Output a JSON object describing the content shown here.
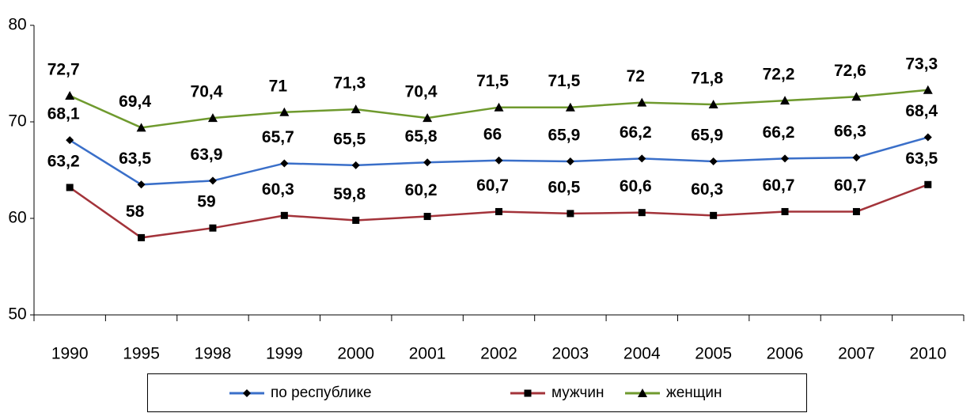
{
  "chart_data": {
    "type": "line",
    "categories": [
      "1990",
      "1995",
      "1998",
      "1999",
      "2000",
      "2001",
      "2002",
      "2003",
      "2004",
      "2005",
      "2006",
      "2007",
      "2010"
    ],
    "series": [
      {
        "name": "по республике",
        "color": "#3a6fc9",
        "marker": "diamond",
        "values": [
          68.1,
          63.5,
          63.9,
          65.7,
          65.5,
          65.8,
          66,
          65.9,
          66.2,
          65.9,
          66.2,
          66.3,
          68.4
        ],
        "value_labels": [
          "68,1",
          "63,5",
          "63,9",
          "65,7",
          "65,5",
          "65,8",
          "66",
          "65,9",
          "66,2",
          "65,9",
          "66,2",
          "66,3",
          "68,4"
        ]
      },
      {
        "name": "мужчин",
        "color": "#a3333a",
        "marker": "square",
        "values": [
          63.2,
          58,
          59,
          60.3,
          59.8,
          60.2,
          60.7,
          60.5,
          60.6,
          60.3,
          60.7,
          60.7,
          63.5
        ],
        "value_labels": [
          "63,2",
          "58",
          "59",
          "60,3",
          "59,8",
          "60,2",
          "60,7",
          "60,5",
          "60,6",
          "60,3",
          "60,7",
          "60,7",
          "63,5"
        ]
      },
      {
        "name": "женщин",
        "color": "#6f9a2e",
        "marker": "triangle",
        "values": [
          72.7,
          69.4,
          70.4,
          71,
          71.3,
          70.4,
          71.5,
          71.5,
          72,
          71.8,
          72.2,
          72.6,
          73.3
        ],
        "value_labels": [
          "72,7",
          "69,4",
          "70,4",
          "71",
          "71,3",
          "70,4",
          "71,5",
          "71,5",
          "72",
          "71,8",
          "72,2",
          "72,6",
          "73,3"
        ]
      }
    ],
    "ylim": [
      50,
      80
    ],
    "yticks": [
      50,
      60,
      70,
      80
    ],
    "grid": false,
    "legend": "bottom"
  }
}
